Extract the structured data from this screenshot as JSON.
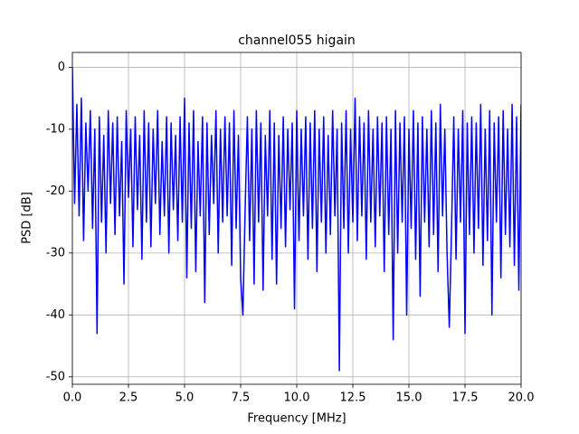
{
  "chart_data": {
    "type": "line",
    "title": "channel055 higain",
    "xlabel": "Frequency [MHz]",
    "ylabel": "PSD [dB]",
    "color": "#0000ff",
    "grid": true,
    "xlim": [
      0,
      20
    ],
    "ylim": [
      -51.2,
      2.4
    ],
    "xticks": [
      {
        "value": 0,
        "label": "0.0"
      },
      {
        "value": 2.5,
        "label": "2.5"
      },
      {
        "value": 5,
        "label": "5.0"
      },
      {
        "value": 7.5,
        "label": "7.5"
      },
      {
        "value": 10,
        "label": "10.0"
      },
      {
        "value": 12.5,
        "label": "12.5"
      },
      {
        "value": 15,
        "label": "15.0"
      },
      {
        "value": 17.5,
        "label": "17.5"
      },
      {
        "value": 20,
        "label": "20.0"
      }
    ],
    "yticks": [
      -50,
      -40,
      -30,
      -20,
      -10,
      0
    ],
    "x": [
      0,
      0.1,
      0.2,
      0.3,
      0.4,
      0.5,
      0.6,
      0.7,
      0.8,
      0.9,
      1,
      1.1,
      1.2,
      1.3,
      1.4,
      1.5,
      1.6,
      1.7,
      1.8,
      1.9,
      2,
      2.1,
      2.2,
      2.3,
      2.4,
      2.5,
      2.6,
      2.7,
      2.8,
      2.9,
      3,
      3.1,
      3.2,
      3.3,
      3.4,
      3.5,
      3.6,
      3.7,
      3.8,
      3.9,
      4,
      4.1,
      4.2,
      4.3,
      4.4,
      4.5,
      4.6,
      4.7,
      4.8,
      4.9,
      5,
      5.1,
      5.2,
      5.3,
      5.4,
      5.5,
      5.6,
      5.7,
      5.8,
      5.9,
      6,
      6.1,
      6.2,
      6.3,
      6.4,
      6.5,
      6.6,
      6.7,
      6.8,
      6.9,
      7,
      7.1,
      7.2,
      7.3,
      7.4,
      7.5,
      7.6,
      7.7,
      7.8,
      7.9,
      8,
      8.1,
      8.2,
      8.3,
      8.4,
      8.5,
      8.6,
      8.7,
      8.8,
      8.9,
      9,
      9.1,
      9.2,
      9.3,
      9.4,
      9.5,
      9.6,
      9.7,
      9.8,
      9.9,
      10,
      10.1,
      10.2,
      10.3,
      10.4,
      10.5,
      10.6,
      10.7,
      10.8,
      10.9,
      11,
      11.1,
      11.2,
      11.3,
      11.4,
      11.5,
      11.6,
      11.7,
      11.8,
      11.9,
      12,
      12.1,
      12.2,
      12.3,
      12.4,
      12.5,
      12.6,
      12.7,
      12.8,
      12.9,
      13,
      13.1,
      13.2,
      13.3,
      13.4,
      13.5,
      13.6,
      13.7,
      13.8,
      13.9,
      14,
      14.1,
      14.2,
      14.3,
      14.4,
      14.5,
      14.6,
      14.7,
      14.8,
      14.9,
      15,
      15.1,
      15.2,
      15.3,
      15.4,
      15.5,
      15.6,
      15.7,
      15.8,
      15.9,
      16,
      16.1,
      16.2,
      16.3,
      16.4,
      16.5,
      16.6,
      16.7,
      16.8,
      16.9,
      17,
      17.1,
      17.2,
      17.3,
      17.4,
      17.5,
      17.6,
      17.7,
      17.8,
      17.9,
      18,
      18.1,
      18.2,
      18.3,
      18.4,
      18.5,
      18.6,
      18.7,
      18.8,
      18.9,
      19,
      19.1,
      19.2,
      19.3,
      19.4,
      19.5,
      19.6,
      19.7,
      19.8,
      19.9,
      20
    ],
    "values": [
      0,
      -22,
      -6,
      -24,
      -5,
      -28,
      -9,
      -20,
      -7,
      -26,
      -10,
      -43,
      -8,
      -25,
      -11,
      -30,
      -7,
      -22,
      -9,
      -27,
      -8,
      -24,
      -12,
      -35,
      -7,
      -21,
      -10,
      -29,
      -8,
      -23,
      -11,
      -31,
      -7,
      -25,
      -9,
      -29,
      -10,
      -22,
      -7,
      -27,
      -12,
      -24,
      -8,
      -30,
      -9,
      -23,
      -11,
      -28,
      -8,
      -25,
      -5,
      -34,
      -9,
      -26,
      -7,
      -33,
      -12,
      -24,
      -8,
      -38,
      -9,
      -27,
      -11,
      -22,
      -7,
      -30,
      -10,
      -25,
      -8,
      -24,
      -9,
      -32,
      -7,
      -26,
      -11,
      -34,
      -40,
      -23,
      -8,
      -28,
      -10,
      -35,
      -7,
      -25,
      -9,
      -36,
      -11,
      -24,
      -7,
      -31,
      -9,
      -35,
      -11,
      -26,
      -8,
      -29,
      -10,
      -23,
      -9,
      -39,
      -7,
      -28,
      -10,
      -24,
      -8,
      -31,
      -9,
      -26,
      -7,
      -33,
      -10,
      -25,
      -8,
      -30,
      -11,
      -27,
      -7,
      -24,
      -10,
      -49,
      -9,
      -26,
      -7,
      -30,
      -10,
      -25,
      -5,
      -28,
      -8,
      -24,
      -9,
      -31,
      -7,
      -25,
      -10,
      -29,
      -8,
      -24,
      -9,
      -33,
      -8,
      -27,
      -10,
      -44,
      -7,
      -30,
      -9,
      -25,
      -8,
      -40,
      -10,
      -26,
      -7,
      -31,
      -9,
      -37,
      -8,
      -25,
      -10,
      -29,
      -7,
      -27,
      -9,
      -33,
      -6,
      -24,
      -10,
      -30,
      -42,
      -26,
      -8,
      -31,
      -10,
      -25,
      -7,
      -43,
      -9,
      -27,
      -8,
      -30,
      -9,
      -26,
      -6,
      -32,
      -10,
      -28,
      -7,
      -40,
      -9,
      -25,
      -8,
      -34,
      -7,
      -27,
      -10,
      -29,
      -6,
      -32,
      -8,
      -36,
      -6
    ]
  }
}
